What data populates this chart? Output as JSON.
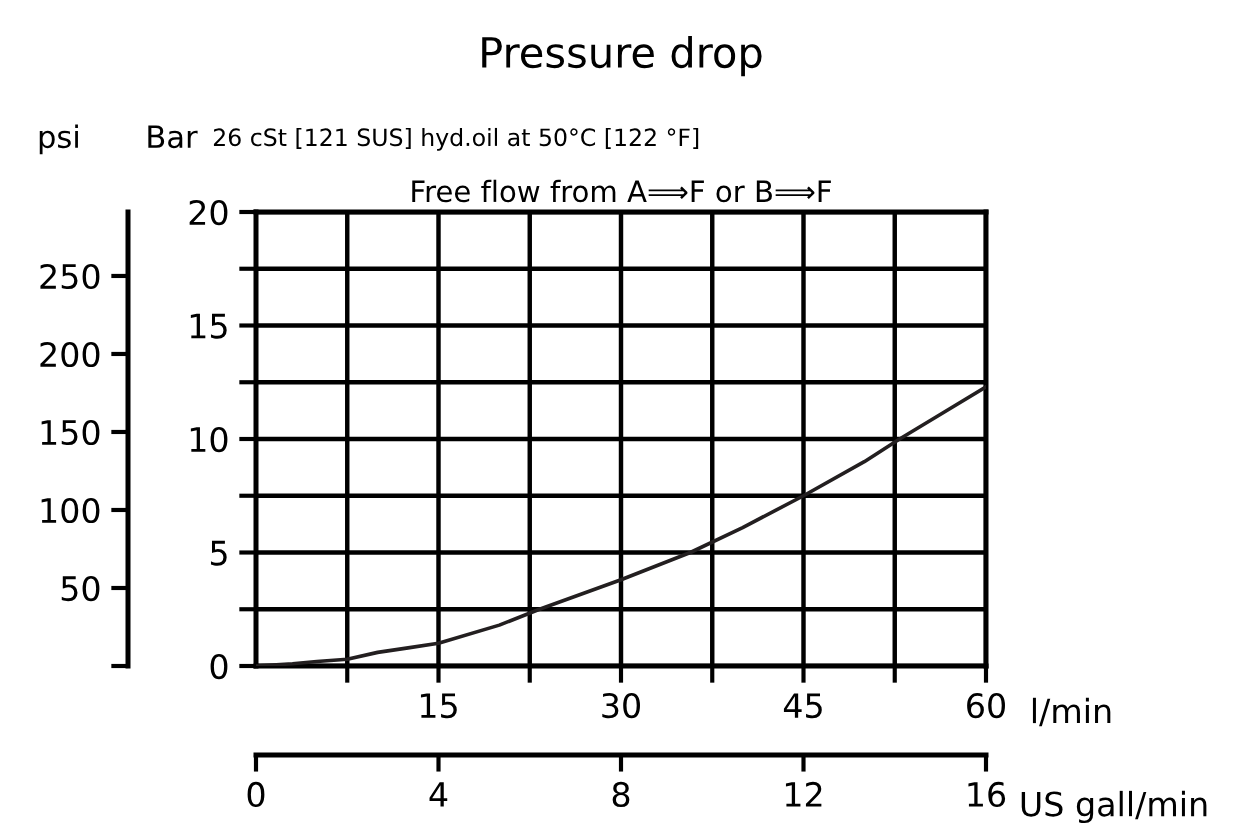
{
  "chart_data": {
    "type": "line",
    "title": "Pressure drop",
    "ylabel": "Bar",
    "y3label": "psi",
    "xlabel": "l/min",
    "x2label": "US gall/min",
    "annotations": [
      "26 cSt [121 SUS] hyd.oil at 50°C [122 °F]",
      "Free flow from A⟹F or B⟹F"
    ],
    "x": [
      0,
      3,
      5,
      7.5,
      10,
      12.5,
      15,
      20,
      23.3,
      30,
      35.7,
      40,
      45,
      50,
      52.9,
      56,
      60
    ],
    "series": [
      {
        "color": "#231f20",
        "values": [
          0,
          0.1,
          0.2,
          0.3,
          0.6,
          0.8,
          1.0,
          1.8,
          2.5,
          3.8,
          5.0,
          6.1,
          7.5,
          9.0,
          10.0,
          11.0,
          12.3
        ]
      }
    ],
    "xlim": [
      0,
      60
    ],
    "xticks": [
      {
        "value": 7.5,
        "label": null
      },
      15,
      {
        "value": 22.5,
        "label": null
      },
      30,
      {
        "value": 37.5,
        "label": null
      },
      45,
      {
        "value": 52.5,
        "label": null
      },
      60
    ],
    "ylim": [
      0,
      20
    ],
    "yticks": [
      0,
      {
        "value": 2.5,
        "label": null
      },
      5,
      {
        "value": 7.5,
        "label": null
      },
      10,
      {
        "value": 12.5,
        "label": null
      },
      15,
      {
        "value": 17.5,
        "label": null
      },
      20
    ],
    "x2lim": [
      0,
      16
    ],
    "x2ticks": [
      0,
      4,
      8,
      12,
      16
    ],
    "y3lim": [
      0,
      291
    ],
    "y3ticks": [
      {
        "value": 0,
        "label": null
      },
      50,
      100,
      150,
      200,
      250
    ],
    "grid": true,
    "line_style": "solid",
    "marker": "none",
    "legend": false
  }
}
